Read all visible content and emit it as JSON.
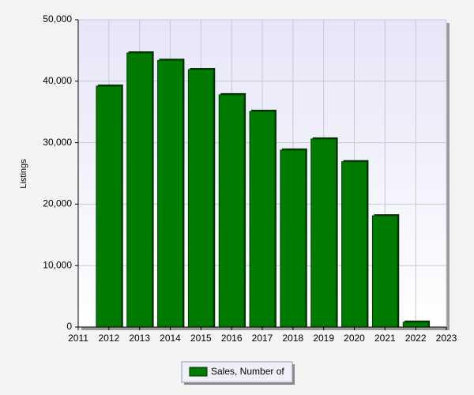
{
  "chart_data": {
    "type": "bar",
    "y_label": "Listings",
    "x": [
      2012,
      2013,
      2014,
      2015,
      2016,
      2017,
      2018,
      2019,
      2020,
      2021,
      2022
    ],
    "series": [
      {
        "name": "Sales, Number of",
        "color": "#007a00",
        "values": [
          39200,
          44600,
          43400,
          41900,
          37800,
          35100,
          28800,
          30600,
          26900,
          18100,
          800
        ]
      }
    ],
    "xlim": [
      2011,
      2023
    ],
    "xticks": [
      2011,
      2012,
      2013,
      2014,
      2015,
      2016,
      2017,
      2018,
      2019,
      2020,
      2021,
      2022,
      2023
    ],
    "ylim": [
      0,
      50000
    ],
    "yticks": [
      0,
      {
        "value": 10000,
        "label": "10,000"
      },
      {
        "value": 20000,
        "label": "20,000"
      },
      {
        "value": 30000,
        "label": "30,000"
      },
      {
        "value": 40000,
        "label": "40,000"
      },
      {
        "value": 50000,
        "label": "50,000"
      }
    ],
    "grid": true
  }
}
